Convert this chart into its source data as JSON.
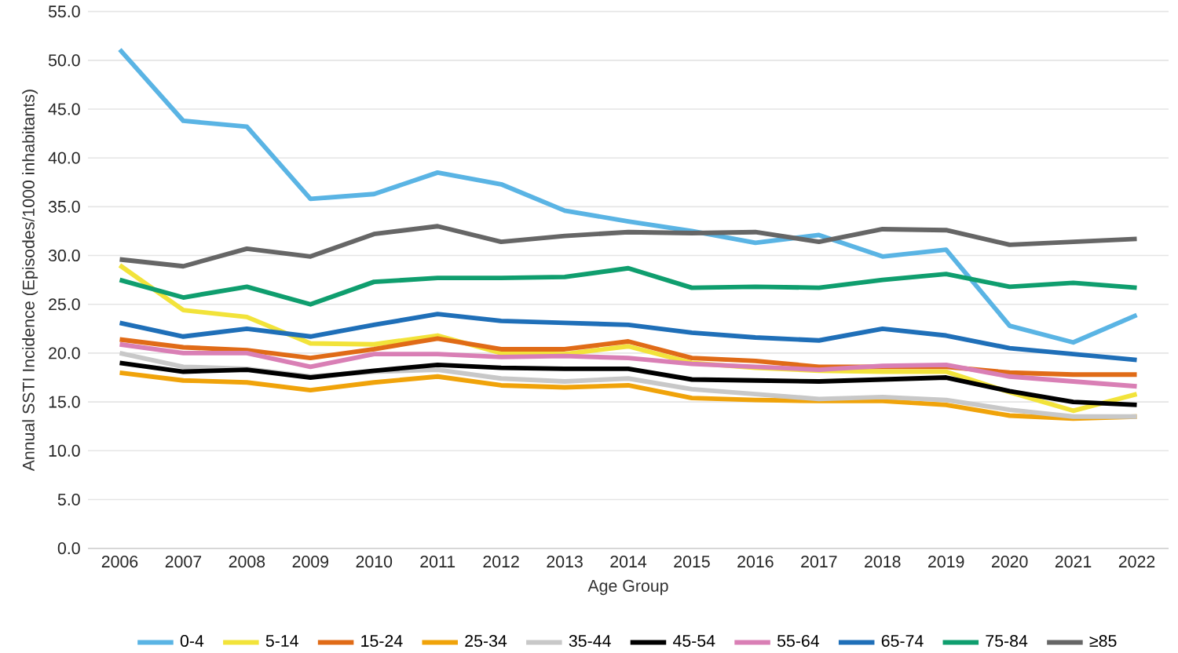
{
  "chart_data": {
    "type": "line",
    "xlabel": "Age Group",
    "ylabel": "Annual SSTI Incidence (Episodes/1000 inhabitants)",
    "categories": [
      "2006",
      "2007",
      "2008",
      "2009",
      "2010",
      "2011",
      "2012",
      "2013",
      "2014",
      "2015",
      "2016",
      "2017",
      "2018",
      "2019",
      "2020",
      "2021",
      "2022"
    ],
    "ylim": [
      0,
      55
    ],
    "yticks": [
      {
        "value": 0,
        "label": "0.0"
      },
      {
        "value": 5,
        "label": "5.0"
      },
      {
        "value": 10,
        "label": "10.0"
      },
      {
        "value": 15,
        "label": "15.0"
      },
      {
        "value": 20,
        "label": "20.0"
      },
      {
        "value": 25,
        "label": "25.0"
      },
      {
        "value": 30,
        "label": "30.0"
      },
      {
        "value": 35,
        "label": "35.0"
      },
      {
        "value": 40,
        "label": "40.0"
      },
      {
        "value": 45,
        "label": "45.0"
      },
      {
        "value": 50,
        "label": "50.0"
      },
      {
        "value": 55,
        "label": "55.0"
      }
    ],
    "grid": "y",
    "legend": "bottom",
    "marker": "none",
    "line_style": "solid",
    "series": [
      {
        "name": "0-4",
        "color": "#5ab4e4",
        "values": [
          51.1,
          43.8,
          43.2,
          35.8,
          36.3,
          38.5,
          37.3,
          34.6,
          33.5,
          32.5,
          31.3,
          32.1,
          29.9,
          30.6,
          22.8,
          21.1,
          23.9
        ]
      },
      {
        "name": "5-14",
        "color": "#f2e33a",
        "values": [
          29.0,
          24.4,
          23.7,
          21.0,
          20.9,
          21.8,
          20.0,
          19.9,
          20.7,
          19.0,
          18.5,
          18.2,
          18.1,
          18.1,
          16.0,
          14.1,
          15.8
        ]
      },
      {
        "name": "15-24",
        "color": "#e06b17",
        "values": [
          21.4,
          20.6,
          20.3,
          19.5,
          20.4,
          21.5,
          20.4,
          20.4,
          21.2,
          19.5,
          19.2,
          18.6,
          18.6,
          18.6,
          18.0,
          17.8,
          17.8
        ]
      },
      {
        "name": "25-34",
        "color": "#f0a30a",
        "values": [
          18.0,
          17.2,
          17.0,
          16.2,
          17.0,
          17.6,
          16.7,
          16.5,
          16.7,
          15.4,
          15.2,
          15.1,
          15.1,
          14.7,
          13.6,
          13.3,
          13.5
        ]
      },
      {
        "name": "35-44",
        "color": "#c8c8c8",
        "values": [
          20.0,
          18.6,
          18.4,
          17.6,
          18.1,
          18.3,
          17.4,
          17.1,
          17.4,
          16.3,
          15.8,
          15.3,
          15.5,
          15.2,
          14.2,
          13.5,
          13.5
        ]
      },
      {
        "name": "45-54",
        "color": "#000000",
        "values": [
          19.0,
          18.1,
          18.3,
          17.5,
          18.2,
          18.8,
          18.5,
          18.4,
          18.4,
          17.3,
          17.2,
          17.1,
          17.3,
          17.5,
          16.1,
          15.0,
          14.7
        ]
      },
      {
        "name": "55-64",
        "color": "#d97fb5",
        "values": [
          20.9,
          20.0,
          20.0,
          18.6,
          19.9,
          19.9,
          19.6,
          19.7,
          19.5,
          18.9,
          18.6,
          18.3,
          18.7,
          18.8,
          17.6,
          17.1,
          16.6
        ]
      },
      {
        "name": "65-74",
        "color": "#1f6fb8",
        "values": [
          23.1,
          21.7,
          22.5,
          21.7,
          22.9,
          24.0,
          23.3,
          23.1,
          22.9,
          22.1,
          21.6,
          21.3,
          22.5,
          21.8,
          20.5,
          19.9,
          19.3
        ]
      },
      {
        "name": "75-84",
        "color": "#0f9e6e",
        "values": [
          27.5,
          25.7,
          26.8,
          25.0,
          27.3,
          27.7,
          27.7,
          27.8,
          28.7,
          26.7,
          26.8,
          26.7,
          27.5,
          28.1,
          26.8,
          27.2,
          26.7
        ]
      },
      {
        "name": "≥85",
        "color": "#666666",
        "values": [
          29.6,
          28.9,
          30.7,
          29.9,
          32.2,
          33.0,
          31.4,
          32.0,
          32.4,
          32.3,
          32.4,
          31.4,
          32.7,
          32.6,
          31.1,
          31.4,
          31.7
        ]
      }
    ]
  }
}
